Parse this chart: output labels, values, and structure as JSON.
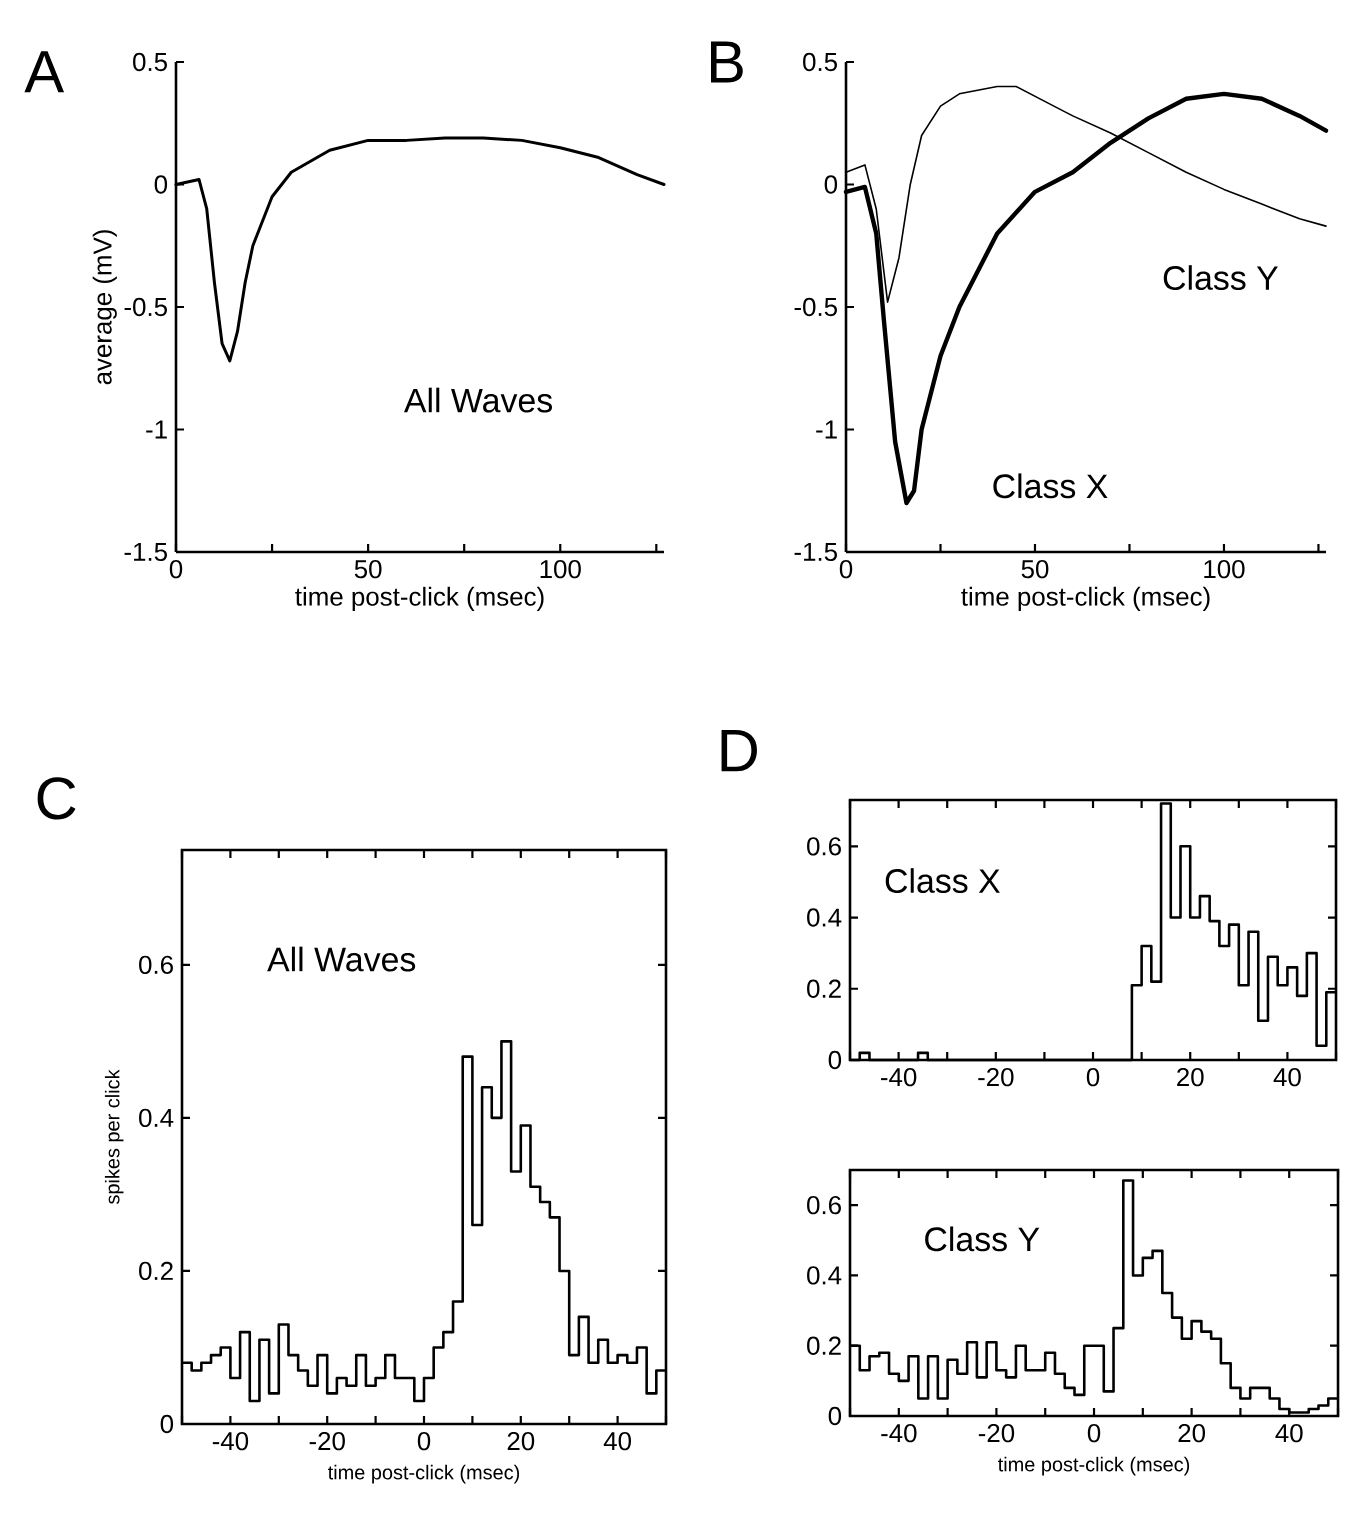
{
  "chart_data": [
    {
      "type": "line",
      "xlabel": "time post-click (msec)",
      "ylabel": "average (mV)",
      "annotations": [
        "A",
        "All Waves"
      ],
      "xlim": [
        0,
        127
      ],
      "ylim": [
        -1.5,
        0.5
      ],
      "xticks": [
        0,
        {
          "value": 25,
          "label": null
        },
        50,
        {
          "value": 75,
          "label": null
        },
        100,
        {
          "value": 125,
          "label": null
        }
      ],
      "yticks": [
        -1.5,
        -1,
        -0.5,
        0,
        0.5
      ],
      "series": [
        {
          "color": "#000000",
          "x": [
            0,
            3,
            6,
            8,
            10,
            12,
            14,
            16,
            18,
            20,
            25,
            30,
            40,
            50,
            60,
            70,
            80,
            90,
            100,
            110,
            120,
            127
          ],
          "values": [
            0,
            0.01,
            0.02,
            -0.1,
            -0.4,
            -0.65,
            -0.72,
            -0.6,
            -0.4,
            -0.25,
            -0.05,
            0.05,
            0.14,
            0.18,
            0.18,
            0.19,
            0.19,
            0.18,
            0.15,
            0.11,
            0.04,
            0.0
          ]
        }
      ]
    },
    {
      "type": "line",
      "xlabel": "time post-click (msec)",
      "annotations": [
        "B"
      ],
      "xlim": [
        0,
        127
      ],
      "ylim": [
        -1.5,
        0.5
      ],
      "xticks": [
        0,
        {
          "value": 25,
          "label": null
        },
        50,
        {
          "value": 75,
          "label": null
        },
        100,
        {
          "value": 125,
          "label": null
        }
      ],
      "yticks": [
        -1.5,
        -1,
        -0.5,
        0,
        0.5
      ],
      "series": [
        {
          "name": "Class X",
          "color": "#000000",
          "x": [
            0,
            5,
            8,
            10,
            13,
            16,
            18,
            20,
            25,
            30,
            40,
            50,
            60,
            70,
            80,
            90,
            100,
            110,
            120,
            127
          ],
          "values": [
            -0.03,
            -0.01,
            -0.2,
            -0.55,
            -1.05,
            -1.3,
            -1.25,
            -1.0,
            -0.7,
            -0.5,
            -0.2,
            -0.03,
            0.05,
            0.17,
            0.27,
            0.35,
            0.37,
            0.35,
            0.28,
            0.22
          ]
        },
        {
          "name": "Class Y",
          "color": "#000000",
          "x": [
            0,
            5,
            8,
            11,
            14,
            17,
            20,
            25,
            30,
            40,
            45,
            55,
            60,
            70,
            80,
            90,
            100,
            110,
            120,
            127
          ],
          "values": [
            0.05,
            0.08,
            -0.1,
            -0.48,
            -0.3,
            0.0,
            0.2,
            0.32,
            0.37,
            0.4,
            0.4,
            0.32,
            0.28,
            0.21,
            0.13,
            0.05,
            -0.02,
            -0.08,
            -0.14,
            -0.17
          ]
        }
      ]
    },
    {
      "type": "histogram",
      "xlabel": "time post-click (msec)",
      "ylabel": "spikes per click",
      "annotations": [
        "C",
        "All Waves"
      ],
      "xlim": [
        -50,
        50
      ],
      "ylim": [
        0,
        0.75
      ],
      "xticks": [
        {
          "value": -50,
          "label": null
        },
        -40,
        {
          "value": -30,
          "label": null
        },
        -20,
        {
          "value": -10,
          "label": null
        },
        0,
        {
          "value": 10,
          "label": null
        },
        20,
        {
          "value": 30,
          "label": null
        },
        40,
        {
          "value": 50,
          "label": null
        }
      ],
      "yticks": [
        0,
        0.2,
        0.4,
        0.6
      ],
      "color": "#000000",
      "bins": [
        -50,
        -48,
        -46,
        -44,
        -42,
        -40,
        -38,
        -36,
        -34,
        -32,
        -30,
        -28,
        -26,
        -24,
        -22,
        -20,
        -18,
        -16,
        -14,
        -12,
        -10,
        -8,
        -6,
        -4,
        -2,
        0,
        2,
        4,
        6,
        8,
        10,
        12,
        14,
        16,
        18,
        20,
        22,
        24,
        26,
        28,
        30,
        32,
        34,
        36,
        38,
        40,
        42,
        44,
        46,
        48,
        50
      ],
      "values": [
        0.08,
        0.07,
        0.08,
        0.09,
        0.1,
        0.06,
        0.12,
        0.03,
        0.11,
        0.04,
        0.13,
        0.09,
        0.07,
        0.05,
        0.09,
        0.04,
        0.06,
        0.05,
        0.09,
        0.05,
        0.06,
        0.09,
        0.06,
        0.06,
        0.03,
        0.06,
        0.1,
        0.12,
        0.16,
        0.48,
        0.26,
        0.44,
        0.4,
        0.5,
        0.33,
        0.39,
        0.31,
        0.29,
        0.27,
        0.2,
        0.09,
        0.14,
        0.08,
        0.11,
        0.08,
        0.09,
        0.08,
        0.1,
        0.04,
        0.07
      ]
    },
    {
      "type": "histogram",
      "annotations": [
        "D",
        "Class X"
      ],
      "xlim": [
        -50,
        50
      ],
      "ylim": [
        0,
        0.73
      ],
      "xticks": [
        {
          "value": -50,
          "label": null
        },
        -40,
        {
          "value": -30,
          "label": null
        },
        -20,
        {
          "value": -10,
          "label": null
        },
        0,
        {
          "value": 10,
          "label": null
        },
        20,
        {
          "value": 30,
          "label": null
        },
        40,
        {
          "value": 50,
          "label": null
        }
      ],
      "yticks": [
        0,
        0.2,
        0.4,
        0.6
      ],
      "color": "#000000",
      "bins": [
        -50,
        -48,
        -46,
        -44,
        -42,
        -40,
        -38,
        -36,
        -34,
        -32,
        -30,
        -28,
        -26,
        -24,
        -22,
        -20,
        -18,
        -16,
        -14,
        -12,
        -10,
        -8,
        -6,
        -4,
        -2,
        0,
        2,
        4,
        6,
        8,
        10,
        12,
        14,
        16,
        18,
        20,
        22,
        24,
        26,
        28,
        30,
        32,
        34,
        36,
        38,
        40,
        42,
        44,
        46,
        48,
        50
      ],
      "values": [
        0,
        0.02,
        0,
        0,
        0,
        0,
        0,
        0.02,
        0,
        0,
        0,
        0,
        0,
        0,
        0,
        0,
        0,
        0,
        0,
        0,
        0,
        0,
        0,
        0,
        0,
        0,
        0,
        0,
        0,
        0.21,
        0.32,
        0.22,
        0.72,
        0.4,
        0.6,
        0.4,
        0.46,
        0.39,
        0.32,
        0.38,
        0.21,
        0.36,
        0.11,
        0.29,
        0.21,
        0.26,
        0.18,
        0.3,
        0.04,
        0.19
      ]
    },
    {
      "type": "histogram",
      "xlabel": "time post-click (msec)",
      "annotations": [
        "Class Y"
      ],
      "xlim": [
        -50,
        50
      ],
      "ylim": [
        0,
        0.7
      ],
      "xticks": [
        {
          "value": -50,
          "label": null
        },
        -40,
        {
          "value": -30,
          "label": null
        },
        -20,
        {
          "value": -10,
          "label": null
        },
        0,
        {
          "value": 10,
          "label": null
        },
        20,
        {
          "value": 30,
          "label": null
        },
        40,
        {
          "value": 50,
          "label": null
        }
      ],
      "yticks": [
        0,
        0.2,
        0.4,
        0.6
      ],
      "color": "#000000",
      "bins": [
        -50,
        -48,
        -46,
        -44,
        -42,
        -40,
        -38,
        -36,
        -34,
        -32,
        -30,
        -28,
        -26,
        -24,
        -22,
        -20,
        -18,
        -16,
        -14,
        -12,
        -10,
        -8,
        -6,
        -4,
        -2,
        0,
        2,
        4,
        6,
        8,
        10,
        12,
        14,
        16,
        18,
        20,
        22,
        24,
        26,
        28,
        30,
        32,
        34,
        36,
        38,
        40,
        42,
        44,
        46,
        48,
        50
      ],
      "values": [
        0.2,
        0.13,
        0.17,
        0.18,
        0.12,
        0.1,
        0.17,
        0.05,
        0.17,
        0.05,
        0.16,
        0.12,
        0.21,
        0.11,
        0.21,
        0.13,
        0.11,
        0.2,
        0.13,
        0.13,
        0.18,
        0.12,
        0.08,
        0.06,
        0.2,
        0.2,
        0.07,
        0.25,
        0.67,
        0.4,
        0.45,
        0.47,
        0.35,
        0.28,
        0.22,
        0.27,
        0.24,
        0.22,
        0.15,
        0.08,
        0.05,
        0.08,
        0.08,
        0.05,
        0.02,
        0.01,
        0.01,
        0.02,
        0.03,
        0.05
      ]
    }
  ]
}
